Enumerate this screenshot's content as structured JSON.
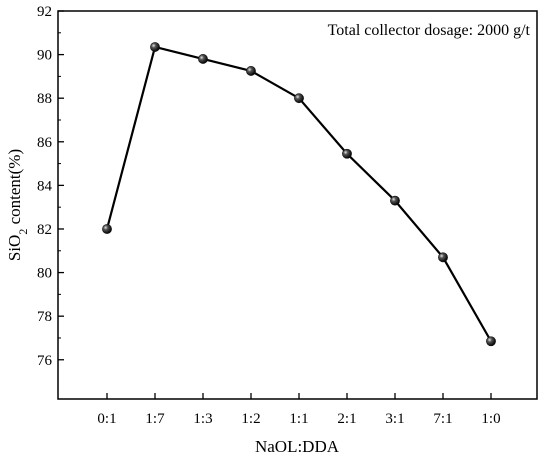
{
  "chart_data": {
    "type": "line",
    "categories": [
      "0:1",
      "1:7",
      "1:3",
      "1:2",
      "1:1",
      "2:1",
      "3:1",
      "7:1",
      "1:0"
    ],
    "values": [
      82.0,
      90.35,
      89.8,
      89.25,
      88.0,
      85.45,
      83.3,
      80.7,
      76.85
    ],
    "xlabel": "NaOL:DDA",
    "ylabel_main": "SiO",
    "ylabel_sub": "2",
    "ylabel_rest": " content(%)",
    "ylim": [
      74.2,
      92
    ],
    "yticks": [
      76,
      78,
      80,
      82,
      84,
      86,
      88,
      90,
      92
    ],
    "annotation": "Total collector dosage: 2000 g/t",
    "grid": false,
    "line_color": "#000000",
    "marker_color": "#111111"
  }
}
